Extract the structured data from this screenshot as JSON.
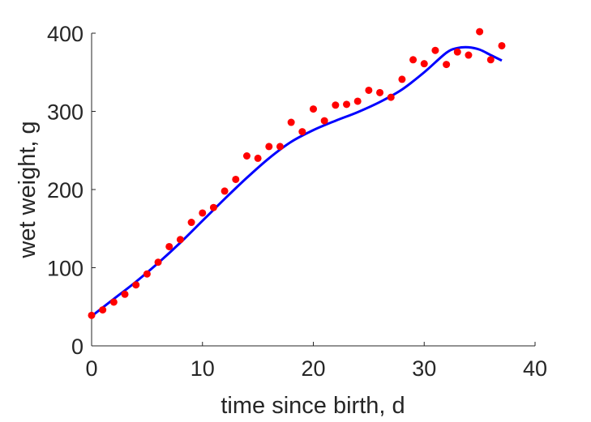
{
  "chart_data": {
    "type": "scatter",
    "xlabel": "time since birth, d",
    "ylabel": "wet weight, g",
    "xlim": [
      0,
      40
    ],
    "ylim": [
      0,
      400
    ],
    "xticks": [
      "0",
      "10",
      "20",
      "30",
      "40"
    ],
    "yticks": [
      "0",
      "100",
      "200",
      "300",
      "400"
    ],
    "grid": false,
    "series": [
      {
        "kind": "points",
        "color": "#ff0000",
        "x": [
          0,
          1,
          2,
          3,
          4,
          5,
          6,
          7,
          8,
          9,
          10,
          11,
          12,
          13,
          14,
          15,
          16,
          17,
          18,
          19,
          20,
          21,
          22,
          23,
          24,
          25,
          26,
          27,
          28,
          29,
          30,
          31,
          32,
          33,
          34,
          35,
          36,
          37
        ],
        "y": [
          39,
          46,
          56,
          66,
          78,
          92,
          107,
          127,
          136,
          158,
          170,
          177,
          198,
          213,
          243,
          240,
          255,
          255,
          286,
          274,
          303,
          288,
          308,
          309,
          313,
          327,
          324,
          318,
          341,
          366,
          361,
          378,
          360,
          376,
          372,
          402,
          366,
          384
        ]
      },
      {
        "kind": "line",
        "color": "#0000ff",
        "x": [
          0,
          2,
          4,
          6,
          8,
          10,
          12,
          14,
          16,
          18,
          20,
          22,
          24,
          26,
          28,
          30,
          32,
          33,
          34,
          35,
          36,
          37
        ],
        "y": [
          38,
          60,
          82,
          106,
          132,
          160,
          188,
          215,
          240,
          261,
          276,
          288,
          299,
          312,
          328,
          350,
          375,
          381,
          382,
          379,
          372,
          365
        ]
      }
    ]
  }
}
